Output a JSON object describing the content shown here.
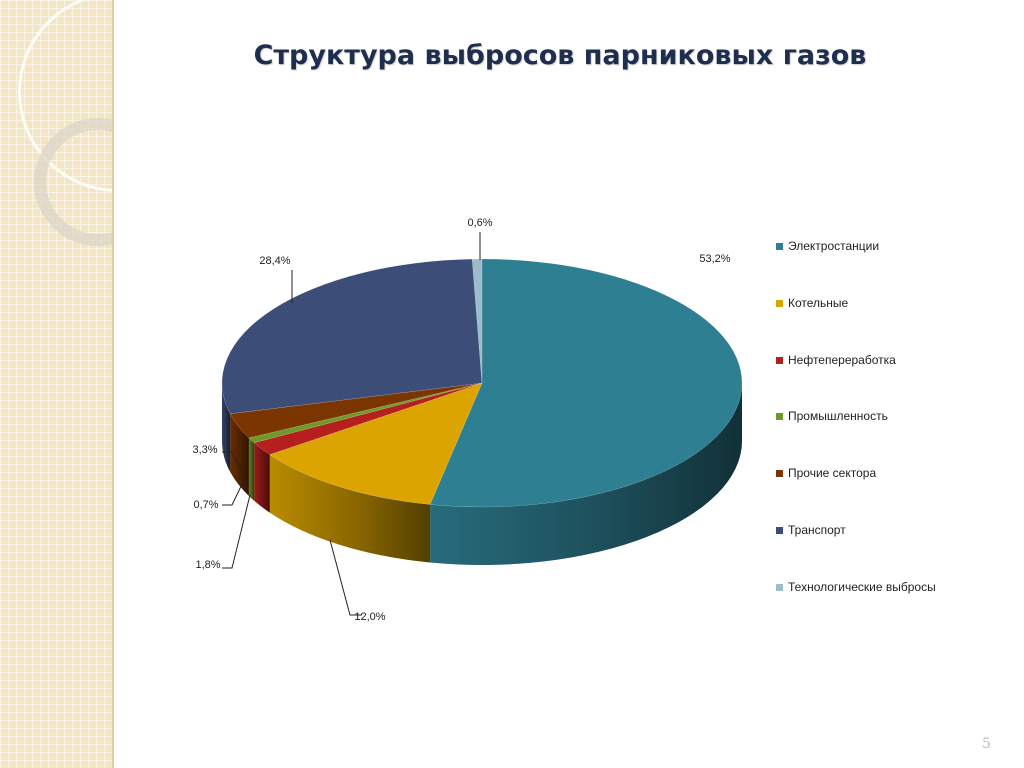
{
  "slide": {
    "title": "Структура выбросов парниковых газов",
    "page_number": "5"
  },
  "colors": {
    "panel": "#f4e6c4",
    "title": "#1f2d4f",
    "slices": {
      "Электростанции": "#2e7f92",
      "Котельные": "#dba400",
      "Нефтепереработка": "#b5201e",
      "Промышленность": "#6e9a28",
      "Прочие сектора": "#7a3500",
      "Транспорт": "#3c4d78",
      "Технологические выбросы": "#9bbcc8"
    }
  },
  "chart_data": {
    "type": "pie",
    "style": "3d",
    "title": "",
    "legend_position": "right",
    "categories": [
      "Электростанции",
      "Котельные",
      "Нефтепереработка",
      "Промышленность",
      "Прочие сектора",
      "Транспорт",
      "Технологические выбросы"
    ],
    "values": [
      53.2,
      12.0,
      1.8,
      0.7,
      3.3,
      28.4,
      0.6
    ],
    "data_labels": [
      "53,2%",
      "12,0%",
      "1,8%",
      "0,7%",
      "3,3%",
      "28,4%",
      "0,6%"
    ]
  }
}
